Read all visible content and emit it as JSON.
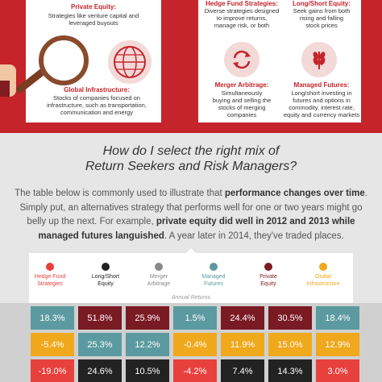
{
  "strategies": {
    "private_equity": {
      "title": "Private Equity:",
      "desc": [
        "Strategies like venture capital and",
        "leveraged buyouts"
      ]
    },
    "global_infrastructure": {
      "title": "Global Infrastructure:",
      "desc": [
        "Stocks of companies focused on",
        "infrastructure, such as transportation,",
        "communication and energy"
      ]
    },
    "hedge_fund": {
      "title": "Hedge Fund Strategies:",
      "desc": [
        "Diverse strategies designed",
        "to improve returns,",
        "manage risk, or both"
      ]
    },
    "long_short": {
      "title": "Long/Short Equity:",
      "desc": [
        "Seek gains from both",
        "rising and falling",
        "stock prices"
      ]
    },
    "merger_arbitrage": {
      "title": "Merger Arbitrage:",
      "desc": [
        "Simultaneously",
        "buying and selling the",
        "stocks of merging",
        "companies"
      ]
    },
    "managed_futures": {
      "title": "Managed Futures:",
      "desc": [
        "Long/short investing in",
        "futures and options in",
        "commodity, interest rate,",
        "equity and currency markets"
      ]
    }
  },
  "question": [
    "How do I select the right mix of",
    "Return Seekers and Risk Managers?"
  ],
  "body": {
    "p1": "The table below is commonly used to illustrate that ",
    "p1_bold": "performance changes over time",
    "p1_end": ".",
    "p2": "Simply put, an alternatives strategy that performs well for one or two years might go",
    "p3": "belly up the next. For example, ",
    "p3_bold": "private equity did well in 2012 and 2013 while",
    "p4_bold": "managed futures languished",
    "p4": ". A year later in 2014, they've traded places."
  },
  "legend": [
    {
      "label": [
        "Hedge Fund",
        "Strategies"
      ],
      "color": "#e8413d"
    },
    {
      "label": [
        "Long/Short",
        "Equity"
      ],
      "color": "#222222"
    },
    {
      "label": [
        "Merger",
        "Arbitrage"
      ],
      "color": "#888888"
    },
    {
      "label": [
        "Managed",
        "Futures"
      ],
      "color": "#5b9aa0"
    },
    {
      "label": [
        "Private",
        "Equity"
      ],
      "color": "#7a1a22"
    },
    {
      "label": [
        "Global",
        "Infrastructure"
      ],
      "color": "#f0a81c"
    }
  ],
  "annual_label": "Annual Returns",
  "table_rows": [
    [
      {
        "v": "18.3%",
        "c": "#5b9aa0"
      },
      {
        "v": "51.8%",
        "c": "#7a1a22"
      },
      {
        "v": "25.9%",
        "c": "#7a1a22"
      },
      {
        "v": "1.5%",
        "c": "#5b9aa0"
      },
      {
        "v": "24.4%",
        "c": "#7a1a22"
      },
      {
        "v": "30.5%",
        "c": "#7a1a22"
      },
      {
        "v": "18.4%",
        "c": "#5b9aa0"
      }
    ],
    [
      {
        "v": "-5.4%",
        "c": "#f0a81c"
      },
      {
        "v": "25.3%",
        "c": "#5b9aa0"
      },
      {
        "v": "12.2%",
        "c": "#5b9aa0"
      },
      {
        "v": "-0.4%",
        "c": "#f0a81c"
      },
      {
        "v": "11.9%",
        "c": "#f0a81c"
      },
      {
        "v": "15.0%",
        "c": "#f0a81c"
      },
      {
        "v": "12.9%",
        "c": "#f0a81c"
      }
    ],
    [
      {
        "v": "-19.0%",
        "c": "#e8413d"
      },
      {
        "v": "24.6%",
        "c": "#222222"
      },
      {
        "v": "10.5%",
        "c": "#222222"
      },
      {
        "v": "-4.2%",
        "c": "#e8413d"
      },
      {
        "v": "7.4%",
        "c": "#222222"
      },
      {
        "v": "14.3%",
        "c": "#222222"
      },
      {
        "v": "3.0%",
        "c": "#e8413d"
      }
    ]
  ]
}
